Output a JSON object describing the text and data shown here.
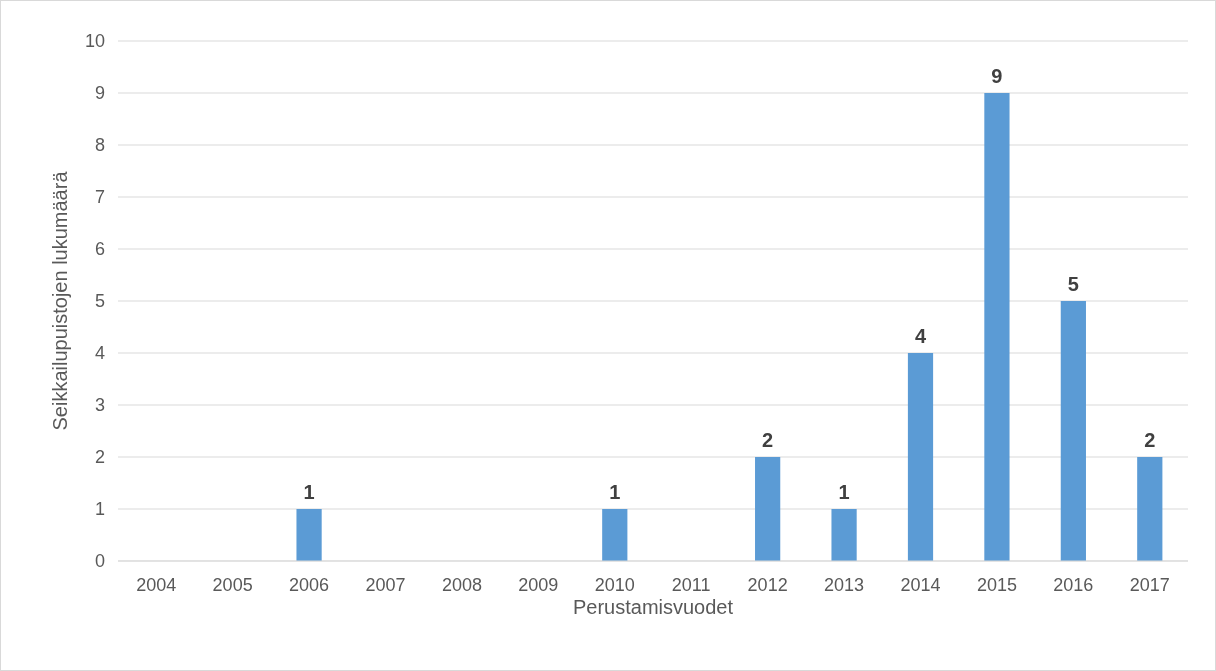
{
  "chart_data": {
    "type": "bar",
    "xlabel": "Perustamisvuodet",
    "ylabel": "Seikkailupuistojen lukumäärä",
    "categories": [
      "2004",
      "2005",
      "2006",
      "2007",
      "2008",
      "2009",
      "2010",
      "2011",
      "2012",
      "2013",
      "2014",
      "2015",
      "2016",
      "2017"
    ],
    "values": [
      0,
      0,
      1,
      0,
      0,
      0,
      1,
      0,
      2,
      1,
      4,
      9,
      5,
      2
    ],
    "value_labels": [
      null,
      null,
      "1",
      null,
      null,
      null,
      "1",
      null,
      "2",
      "1",
      "4",
      "9",
      "5",
      "2"
    ],
    "color": "#5b9bd5",
    "ylim": [
      0,
      10
    ],
    "yticks": [
      0,
      1,
      2,
      3,
      4,
      5,
      6,
      7,
      8,
      9,
      10
    ],
    "grid": "y"
  }
}
